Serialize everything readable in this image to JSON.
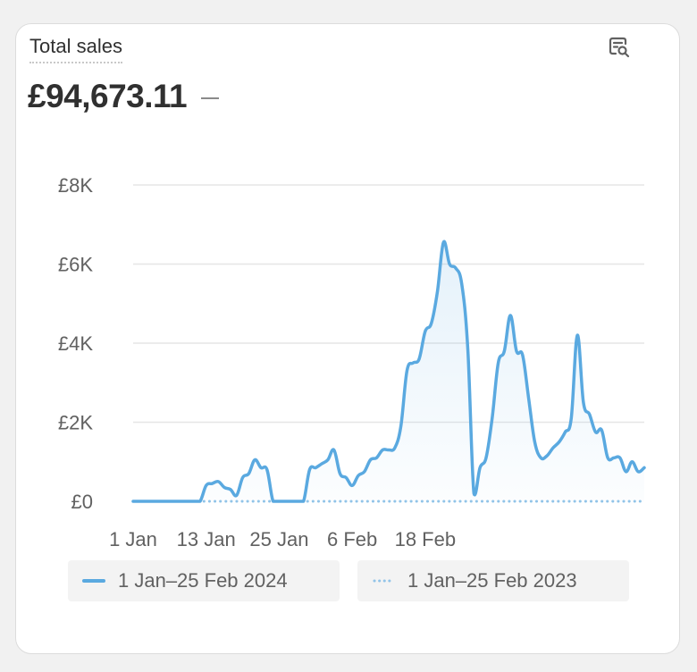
{
  "card": {
    "title": "Total sales",
    "total": "£94,673.11",
    "icon": "report-search-icon"
  },
  "colors": {
    "current": "#5aa9e0",
    "previous": "#92c4e8",
    "grid": "#e6e6e6",
    "text": "#616161"
  },
  "chart_data": {
    "type": "line",
    "title": "",
    "xlabel": "",
    "ylabel": "",
    "y_ticks": [
      "£0",
      "£2K",
      "£4K",
      "£6K",
      "£8K"
    ],
    "ylim": [
      0,
      8000
    ],
    "x_ticks": [
      "1 Jan",
      "13 Jan",
      "25 Jan",
      "6 Feb",
      "18 Feb"
    ],
    "grid": true,
    "legend_position": "bottom",
    "series": [
      {
        "name": "1 Jan–25 Feb 2024",
        "style": "solid",
        "values": [
          0,
          0,
          0,
          0,
          0,
          0,
          0,
          0,
          0,
          0,
          0,
          0,
          400,
          450,
          500,
          350,
          300,
          150,
          600,
          700,
          1050,
          850,
          800,
          0,
          0,
          0,
          0,
          0,
          0,
          800,
          850,
          950,
          1050,
          1300,
          700,
          600,
          400,
          650,
          750,
          1050,
          1100,
          1300,
          1300,
          1350,
          1900,
          3300,
          3500,
          3600,
          4300,
          4500,
          5300,
          6550,
          6000,
          5900,
          5500,
          3850,
          200,
          850,
          1100,
          2100,
          3500,
          3800,
          4700,
          3800,
          3700,
          2600,
          1500,
          1100,
          1150,
          1350,
          1500,
          1750,
          2100,
          4200,
          2500,
          2200,
          1750,
          1800,
          1100,
          1100,
          1100,
          750,
          1000,
          750,
          850
        ]
      },
      {
        "name": "1 Jan–25 Feb 2023",
        "style": "dotted",
        "values": [
          0,
          0,
          0,
          0,
          0,
          0,
          0,
          0,
          0,
          0,
          0,
          0,
          0,
          0,
          0,
          0,
          0,
          0,
          0,
          0,
          0,
          0,
          0,
          0,
          0,
          0,
          0,
          0,
          0,
          0,
          0,
          0,
          0,
          0,
          0,
          0,
          0,
          0,
          0,
          0,
          0,
          0,
          0,
          0,
          0,
          0,
          0,
          0,
          0,
          0,
          0,
          0,
          0,
          0,
          0,
          0,
          0,
          0,
          0,
          0,
          0,
          0,
          0,
          0,
          0,
          0,
          0,
          0,
          0,
          0,
          0,
          0,
          0,
          0,
          0,
          0,
          0,
          0,
          0,
          0,
          0,
          0,
          0,
          0,
          0
        ]
      }
    ]
  }
}
